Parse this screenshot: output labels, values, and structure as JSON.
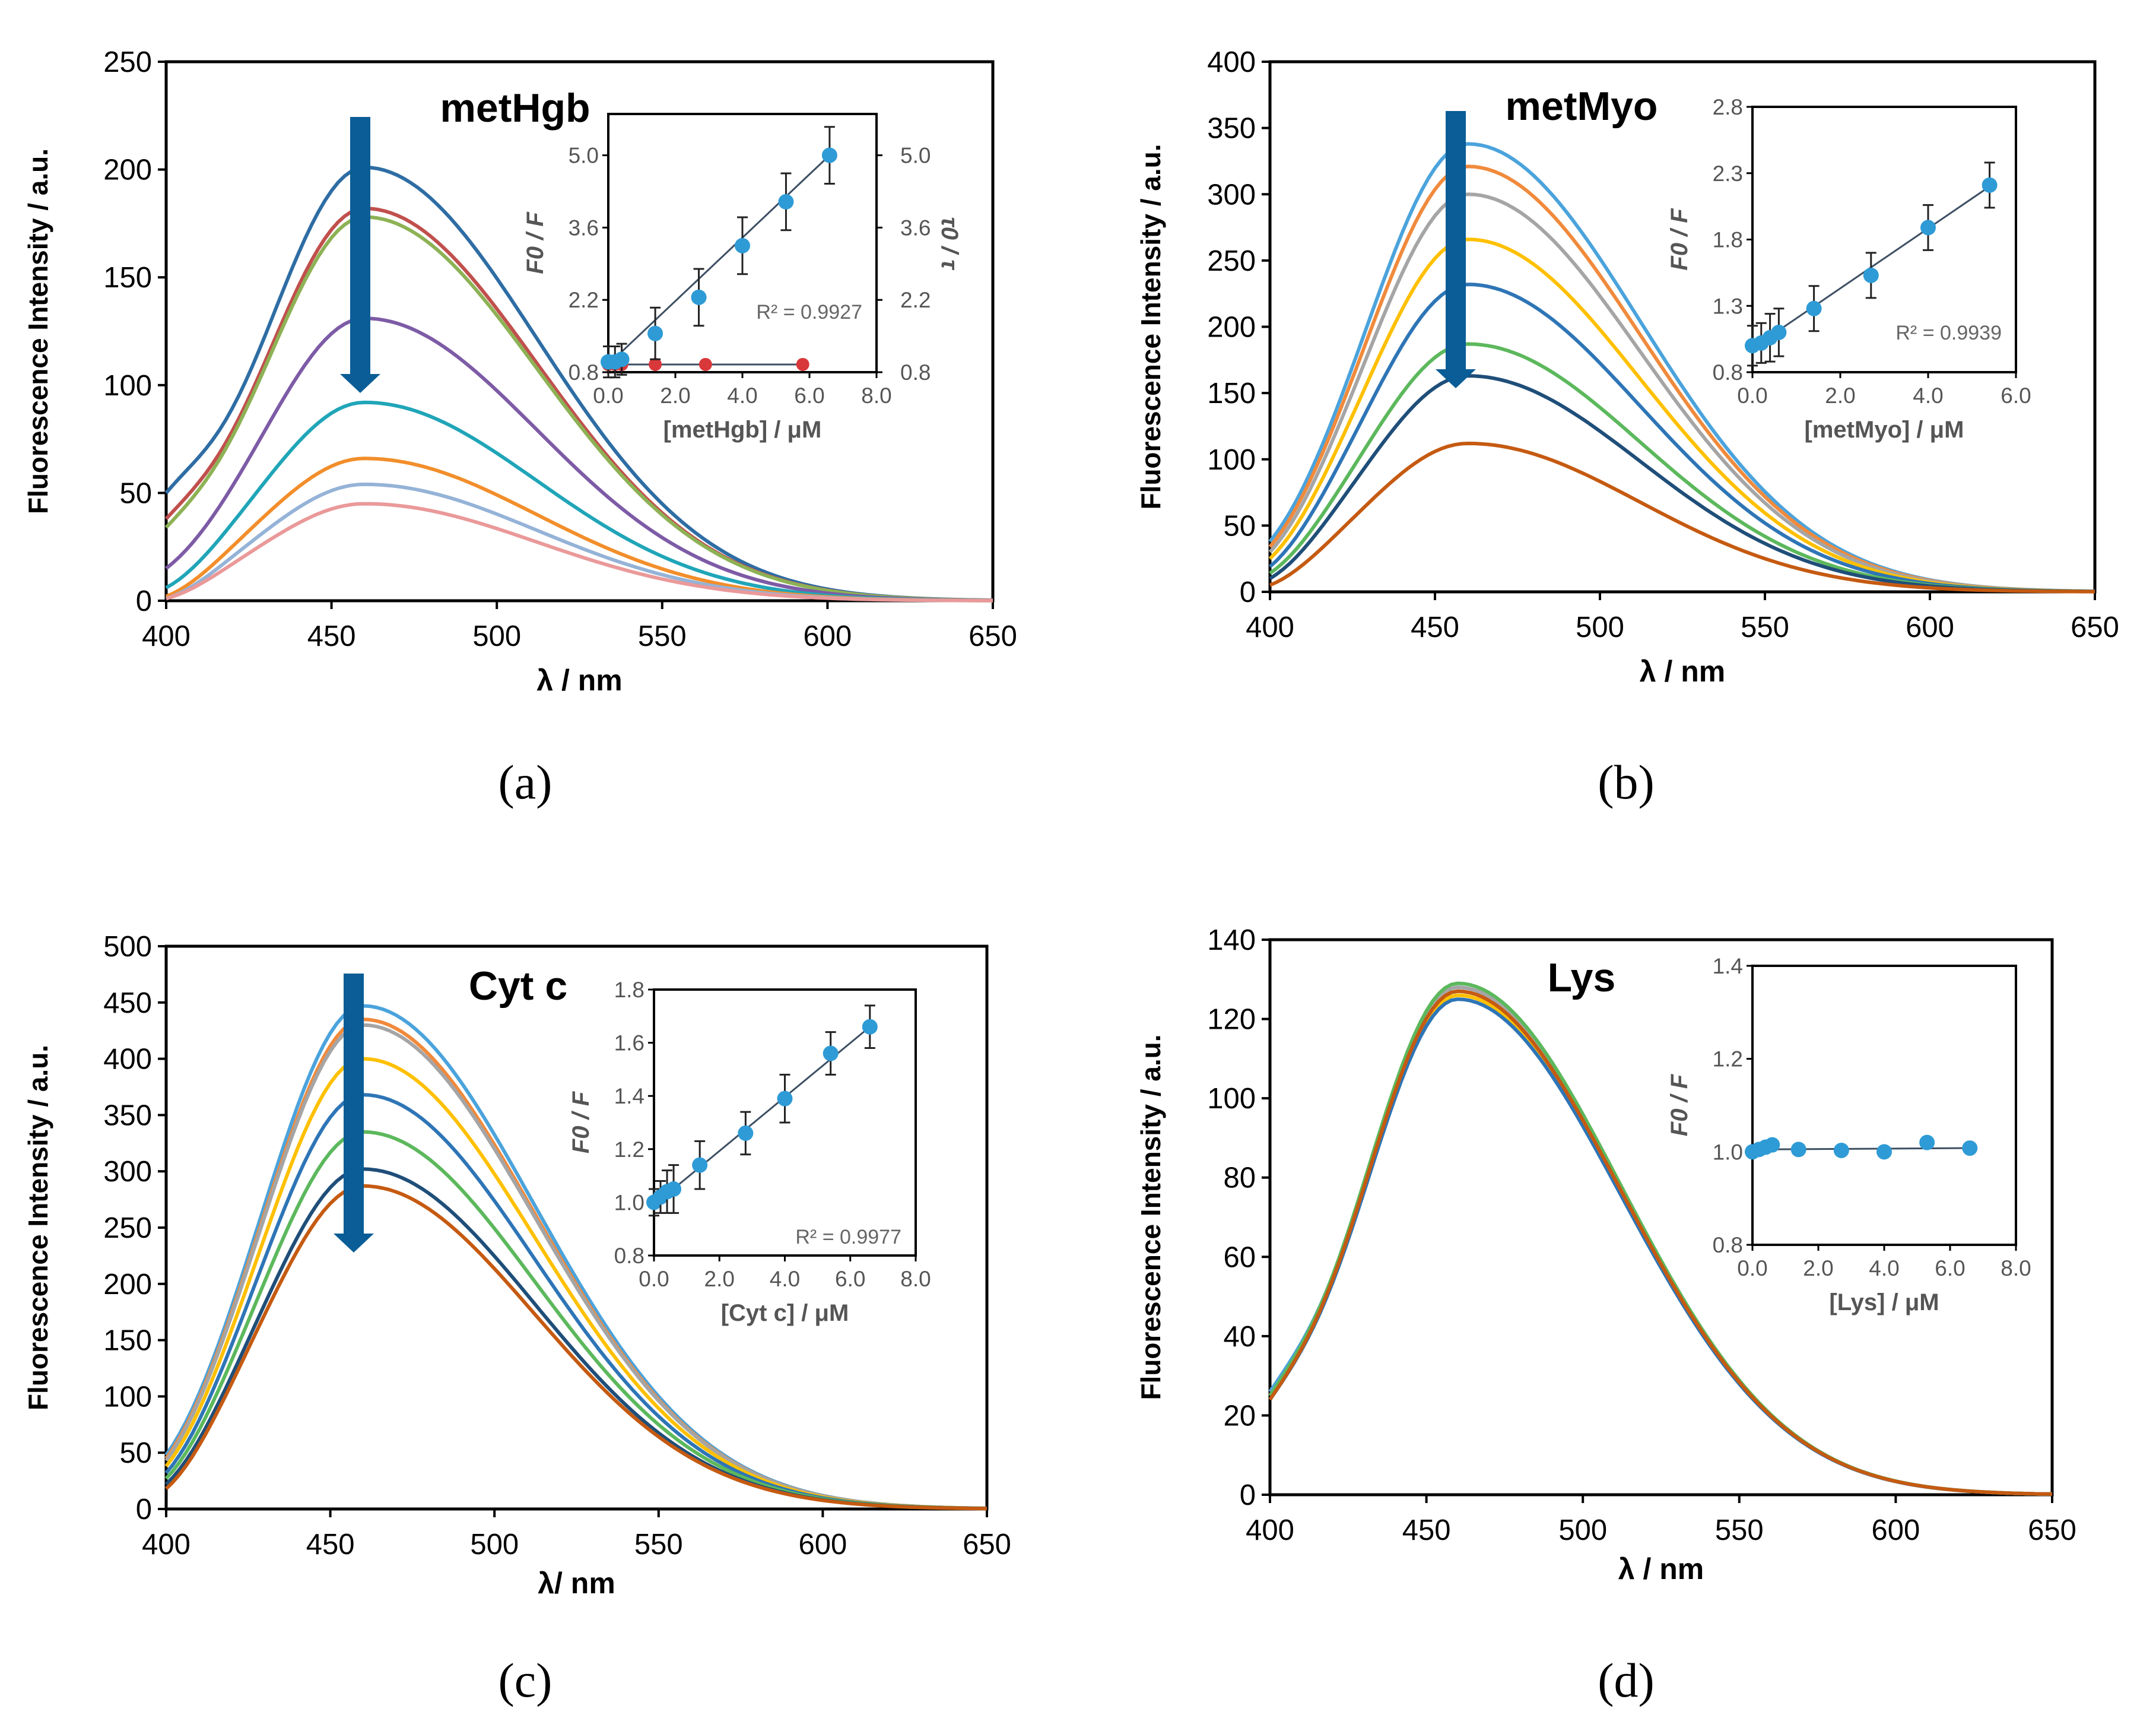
{
  "colors": {
    "arrow": "#0A5D96",
    "inset_point": "#2E9BD6",
    "inset_point_red": "#D9383A",
    "fit_line": "#3D4F63"
  },
  "chart_data": [
    {
      "panel": "(a)",
      "type": "line",
      "title": "metHgb",
      "xlabel": "λ / nm",
      "ylabel": "Fluorescence Intensity / a.u.",
      "xlim": [
        400,
        650
      ],
      "ylim": [
        0,
        250
      ],
      "xticks": [
        "400",
        "450",
        "500",
        "550",
        "600",
        "650"
      ],
      "yticks": [
        "0",
        "50",
        "100",
        "150",
        "200",
        "250"
      ],
      "series": [
        {
          "name": "s1",
          "color": "#2E6DA4",
          "peak": 201,
          "at400": 50
        },
        {
          "name": "s2",
          "color": "#C0504D",
          "peak": 182,
          "at400": 38
        },
        {
          "name": "s3",
          "color": "#8DB255",
          "peak": 178,
          "at400": 34
        },
        {
          "name": "s4",
          "color": "#7D5BA6",
          "peak": 131,
          "at400": 15
        },
        {
          "name": "s5",
          "color": "#20A5B8",
          "peak": 92,
          "at400": 6
        },
        {
          "name": "s6",
          "color": "#F28E2B",
          "peak": 66,
          "at400": 2
        },
        {
          "name": "s7",
          "color": "#95B3D7",
          "peak": 54,
          "at400": 1
        },
        {
          "name": "s8",
          "color": "#EA9999",
          "peak": 45,
          "at400": 1
        }
      ],
      "arrow": "down",
      "inset": {
        "type": "scatter",
        "xlabel": "[metHgb] / μM",
        "ylabel": "F0 / F",
        "y2label": "τ0 / τ",
        "xlim": [
          0,
          8
        ],
        "ylim": [
          0.8,
          5.8
        ],
        "xticks": [
          "0.0",
          "2.0",
          "4.0",
          "6.0",
          "8.0"
        ],
        "yticks": [
          "0.8",
          "2.2",
          "3.6",
          "5.0"
        ],
        "y2ticks": [
          "0.8",
          "2.2",
          "3.6",
          "5.0"
        ],
        "r2": "R² = 0.9927",
        "points": [
          {
            "x": 0,
            "y": 1.0,
            "err": 0.3
          },
          {
            "x": 0.2,
            "y": 1.0,
            "err": 0.3
          },
          {
            "x": 0.4,
            "y": 1.05,
            "err": 0.3
          },
          {
            "x": 1.4,
            "y": 1.55,
            "err": 0.5
          },
          {
            "x": 2.7,
            "y": 2.25,
            "err": 0.55
          },
          {
            "x": 4.0,
            "y": 3.25,
            "err": 0.55
          },
          {
            "x": 5.3,
            "y": 4.1,
            "err": 0.55
          },
          {
            "x": 6.6,
            "y": 5.0,
            "err": 0.55
          }
        ],
        "points2": [
          {
            "x": 0,
            "y": 0.95
          },
          {
            "x": 0.2,
            "y": 0.95
          },
          {
            "x": 0.4,
            "y": 0.95
          },
          {
            "x": 1.4,
            "y": 0.95
          },
          {
            "x": 2.9,
            "y": 0.95
          },
          {
            "x": 5.8,
            "y": 0.95
          }
        ],
        "fit": [
          {
            "x": 0,
            "y": 0.95
          },
          {
            "x": 6.6,
            "y": 5.0
          }
        ],
        "fit2": [
          {
            "x": 0,
            "y": 0.95
          },
          {
            "x": 5.8,
            "y": 0.95
          }
        ]
      }
    },
    {
      "panel": "(b)",
      "type": "line",
      "title": "metMyo",
      "xlabel": "λ / nm",
      "ylabel": "Fluorescence Intensity / a.u.",
      "xlim": [
        400,
        650
      ],
      "ylim": [
        0,
        400
      ],
      "xticks": [
        "400",
        "450",
        "500",
        "550",
        "600",
        "650"
      ],
      "yticks": [
        "0",
        "50",
        "100",
        "150",
        "200",
        "250",
        "300",
        "350",
        "400"
      ],
      "series": [
        {
          "name": "s1",
          "color": "#4BA3DC",
          "peak": 338,
          "at400": 38
        },
        {
          "name": "s2",
          "color": "#F08A3C",
          "peak": 321,
          "at400": 34
        },
        {
          "name": "s3",
          "color": "#A5A5A5",
          "peak": 300,
          "at400": 30
        },
        {
          "name": "s4",
          "color": "#FFC000",
          "peak": 266,
          "at400": 25
        },
        {
          "name": "s5",
          "color": "#2E75B6",
          "peak": 232,
          "at400": 19
        },
        {
          "name": "s6",
          "color": "#5CB85C",
          "peak": 187,
          "at400": 14
        },
        {
          "name": "s7",
          "color": "#1F4E79",
          "peak": 163,
          "at400": 10
        },
        {
          "name": "s8",
          "color": "#C55A11",
          "peak": 112,
          "at400": 5
        }
      ],
      "arrow": "down",
      "inset": {
        "type": "scatter",
        "xlabel": "[metMyo] / μM",
        "ylabel": "F0 / F",
        "xlim": [
          0,
          6
        ],
        "ylim": [
          0.8,
          2.8
        ],
        "xticks": [
          "0.0",
          "2.0",
          "4.0",
          "6.0"
        ],
        "yticks": [
          "0.8",
          "1.3",
          "1.8",
          "2.3",
          "2.8"
        ],
        "r2": "R² = 0.9939",
        "points": [
          {
            "x": 0,
            "y": 1.0,
            "err": 0.15
          },
          {
            "x": 0.2,
            "y": 1.02,
            "err": 0.15
          },
          {
            "x": 0.4,
            "y": 1.06,
            "err": 0.18
          },
          {
            "x": 0.6,
            "y": 1.1,
            "err": 0.18
          },
          {
            "x": 1.4,
            "y": 1.28,
            "err": 0.17
          },
          {
            "x": 2.7,
            "y": 1.53,
            "err": 0.17
          },
          {
            "x": 4.0,
            "y": 1.89,
            "err": 0.17
          },
          {
            "x": 5.4,
            "y": 2.21,
            "err": 0.17
          }
        ],
        "fit": [
          {
            "x": 0,
            "y": 0.98
          },
          {
            "x": 5.4,
            "y": 2.2
          }
        ]
      }
    },
    {
      "panel": "(c)",
      "type": "line",
      "title": "Cyt c",
      "xlabel": "λ/ nm",
      "ylabel": "Fluorescence Intensity / a.u.",
      "xlim": [
        400,
        650
      ],
      "ylim": [
        0,
        500
      ],
      "xticks": [
        "400",
        "450",
        "500",
        "550",
        "600",
        "650"
      ],
      "yticks": [
        "0",
        "50",
        "100",
        "150",
        "200",
        "250",
        "300",
        "350",
        "400",
        "450",
        "500"
      ],
      "series": [
        {
          "name": "s1",
          "color": "#4BA3DC",
          "peak": 447,
          "at400": 48
        },
        {
          "name": "s2",
          "color": "#F08A3C",
          "peak": 435,
          "at400": 45
        },
        {
          "name": "s3",
          "color": "#A5A5A5",
          "peak": 430,
          "at400": 43
        },
        {
          "name": "s4",
          "color": "#FFC000",
          "peak": 400,
          "at400": 38
        },
        {
          "name": "s5",
          "color": "#2E75B6",
          "peak": 368,
          "at400": 32
        },
        {
          "name": "s6",
          "color": "#5CB85C",
          "peak": 335,
          "at400": 27
        },
        {
          "name": "s7",
          "color": "#1F4E79",
          "peak": 302,
          "at400": 22
        },
        {
          "name": "s8",
          "color": "#C55A11",
          "peak": 287,
          "at400": 18
        }
      ],
      "arrow": "down",
      "inset": {
        "type": "scatter",
        "xlabel": "[Cyt c] / μM",
        "ylabel": "F0 / F",
        "xlim": [
          0,
          8
        ],
        "ylim": [
          0.8,
          1.8
        ],
        "xticks": [
          "0.0",
          "2.0",
          "4.0",
          "6.0",
          "8.0"
        ],
        "yticks": [
          "0.8",
          "1.0",
          "1.2",
          "1.4",
          "1.6",
          "1.8"
        ],
        "r2": "R² = 0.9977",
        "points": [
          {
            "x": 0,
            "y": 1.0,
            "err": 0.05
          },
          {
            "x": 0.2,
            "y": 1.02,
            "err": 0.06
          },
          {
            "x": 0.4,
            "y": 1.04,
            "err": 0.08
          },
          {
            "x": 0.6,
            "y": 1.05,
            "err": 0.09
          },
          {
            "x": 1.4,
            "y": 1.14,
            "err": 0.09
          },
          {
            "x": 2.8,
            "y": 1.26,
            "err": 0.08
          },
          {
            "x": 4.0,
            "y": 1.39,
            "err": 0.09
          },
          {
            "x": 5.4,
            "y": 1.56,
            "err": 0.08
          },
          {
            "x": 6.6,
            "y": 1.66,
            "err": 0.08
          }
        ],
        "fit": [
          {
            "x": 0,
            "y": 0.99
          },
          {
            "x": 6.6,
            "y": 1.66
          }
        ]
      }
    },
    {
      "panel": "(d)",
      "type": "line",
      "title": "Lys",
      "xlabel": "λ / nm",
      "ylabel": "Fluorescence Intensity / a.u.",
      "xlim": [
        400,
        650
      ],
      "ylim": [
        0,
        140
      ],
      "xticks": [
        "400",
        "450",
        "500",
        "550",
        "600",
        "650"
      ],
      "yticks": [
        "0",
        "20",
        "40",
        "60",
        "80",
        "100",
        "120",
        "140"
      ],
      "series": [
        {
          "name": "s1",
          "color": "#4BA3DC",
          "peak": 128,
          "at400": 26
        },
        {
          "name": "s2",
          "color": "#F08A3C",
          "peak": 127,
          "at400": 25
        },
        {
          "name": "s3",
          "color": "#A5A5A5",
          "peak": 128,
          "at400": 25
        },
        {
          "name": "s4",
          "color": "#FFC000",
          "peak": 126,
          "at400": 25
        },
        {
          "name": "s5",
          "color": "#5CB85C",
          "peak": 129,
          "at400": 25
        },
        {
          "name": "s6",
          "color": "#2E75B6",
          "peak": 125,
          "at400": 24
        },
        {
          "name": "s7",
          "color": "#C55A11",
          "peak": 127,
          "at400": 24
        }
      ],
      "arrow": "none",
      "inset": {
        "type": "scatter",
        "xlabel": "[Lys] / μM",
        "ylabel": "F0 / F",
        "xlim": [
          0,
          8
        ],
        "ylim": [
          0.8,
          1.4
        ],
        "xticks": [
          "0.0",
          "2.0",
          "4.0",
          "6.0",
          "8.0"
        ],
        "yticks": [
          "0.8",
          "1.0",
          "1.2",
          "1.4"
        ],
        "r2": "",
        "points": [
          {
            "x": 0,
            "y": 1.0,
            "err": 0
          },
          {
            "x": 0.2,
            "y": 1.005,
            "err": 0
          },
          {
            "x": 0.4,
            "y": 1.01,
            "err": 0
          },
          {
            "x": 0.6,
            "y": 1.015,
            "err": 0
          },
          {
            "x": 1.4,
            "y": 1.005,
            "err": 0
          },
          {
            "x": 2.7,
            "y": 1.003,
            "err": 0
          },
          {
            "x": 4.0,
            "y": 1.0,
            "err": 0
          },
          {
            "x": 5.3,
            "y": 1.02,
            "err": 0
          },
          {
            "x": 6.6,
            "y": 1.008,
            "err": 0
          }
        ],
        "fit": [
          {
            "x": 0,
            "y": 1.005
          },
          {
            "x": 6.6,
            "y": 1.008
          }
        ]
      }
    }
  ]
}
